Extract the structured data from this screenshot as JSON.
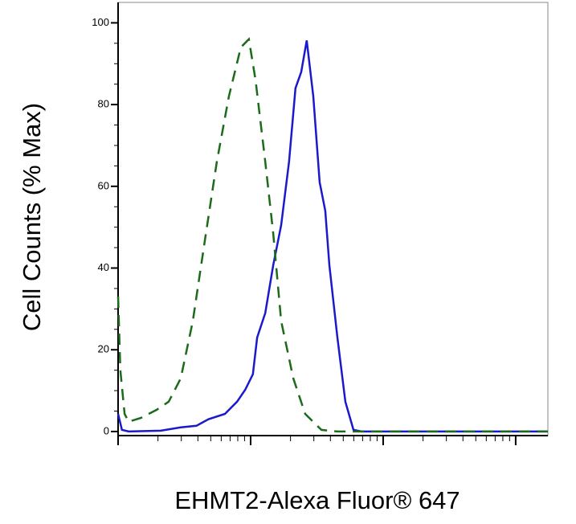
{
  "chart_data": {
    "type": "line",
    "y_label": "Cell Counts (% Max)",
    "x_label": "EHMT2-Alexa Fluor® 647",
    "xscale": "log",
    "xlim": [
      1,
      1750
    ],
    "xticks": [
      1,
      10,
      100,
      1000
    ],
    "ylim": [
      -1,
      105
    ],
    "yticks": [
      0,
      20,
      40,
      60,
      80,
      100
    ],
    "series": [
      {
        "color": "#1a1acc",
        "dash": false,
        "x": [
          1,
          1.07,
          1.2,
          2.1,
          2.97,
          3.9,
          4.8,
          6.4,
          7.9,
          9.1,
          10.4,
          11.2,
          12.9,
          14.8,
          17,
          19.5,
          21.8,
          24.1,
          26.5,
          29.7,
          33.2,
          36.6,
          39.3,
          45.2,
          51.9,
          59.7,
          68.6,
          1750
        ],
        "values": [
          4.3,
          0.4,
          0,
          0.2,
          1,
          1.4,
          3,
          4.3,
          7.3,
          10.2,
          14,
          23,
          29,
          40.7,
          50.5,
          66,
          84,
          88,
          95.7,
          82,
          61,
          54,
          40.7,
          23,
          7.3,
          0.4,
          0,
          0
        ]
      },
      {
        "color": "#1a6b1a",
        "dash": true,
        "x": [
          1,
          1.04,
          1.12,
          1.2,
          1.48,
          1.95,
          2.41,
          2.97,
          3.66,
          4.51,
          5.56,
          6.85,
          8.44,
          9.7,
          10.9,
          12.9,
          14.8,
          17,
          21,
          25.8,
          34.2,
          45,
          1750
        ],
        "values": [
          33,
          15,
          4.3,
          2.4,
          3.3,
          5.3,
          7.3,
          13,
          27,
          46.6,
          66,
          82,
          94,
          96,
          86,
          66,
          48.5,
          27,
          13,
          4.3,
          0.4,
          0,
          0
        ]
      }
    ]
  }
}
